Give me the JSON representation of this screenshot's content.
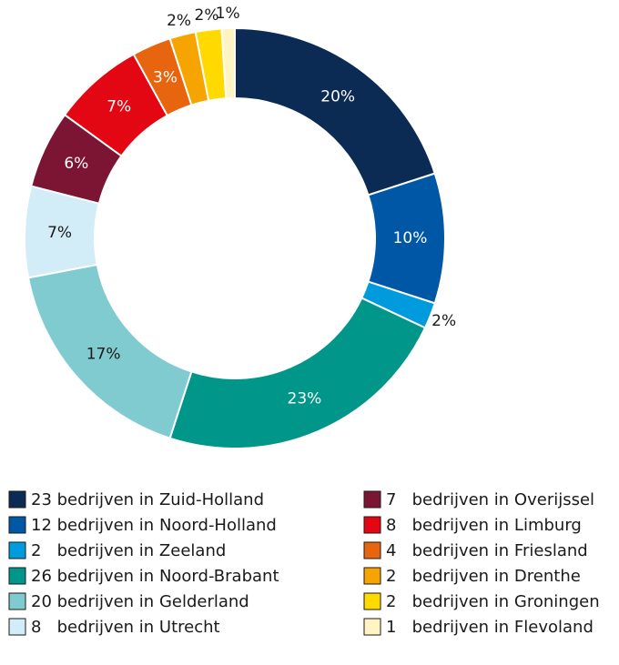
{
  "chart_data": {
    "type": "pie",
    "categories": [
      "23 bedrijven in Zuid-Holland",
      "12 bedrijven in Noord-Holland",
      "2   bedrijven in Zeeland",
      "26 bedrijven in Noord-Brabant",
      "20 bedrijven in Gelderland",
      "8   bedrijven in Utrecht",
      "7   bedrijven in Overijssel",
      "8   bedrijven in Limburg",
      "4   bedrijven in Friesland",
      "2   bedrijven in Drenthe",
      "2   bedrijven in Groningen",
      "1   bedrijven in Flevoland"
    ],
    "values": [
      20,
      10,
      2,
      23,
      17,
      7,
      6,
      7,
      3,
      2,
      2,
      1
    ],
    "value_labels": [
      "20%",
      "10%",
      "2%",
      "23%",
      "17%",
      "7%",
      "6%",
      "7%",
      "3%",
      "2%",
      "2%",
      "1%"
    ],
    "colors": [
      "#0b2a54",
      "#0057a6",
      "#009bdc",
      "#00968a",
      "#80cbd0",
      "#d2ecf8",
      "#7b1533",
      "#e30613",
      "#e8650f",
      "#f5a400",
      "#ffd900",
      "#fff4c2"
    ]
  }
}
